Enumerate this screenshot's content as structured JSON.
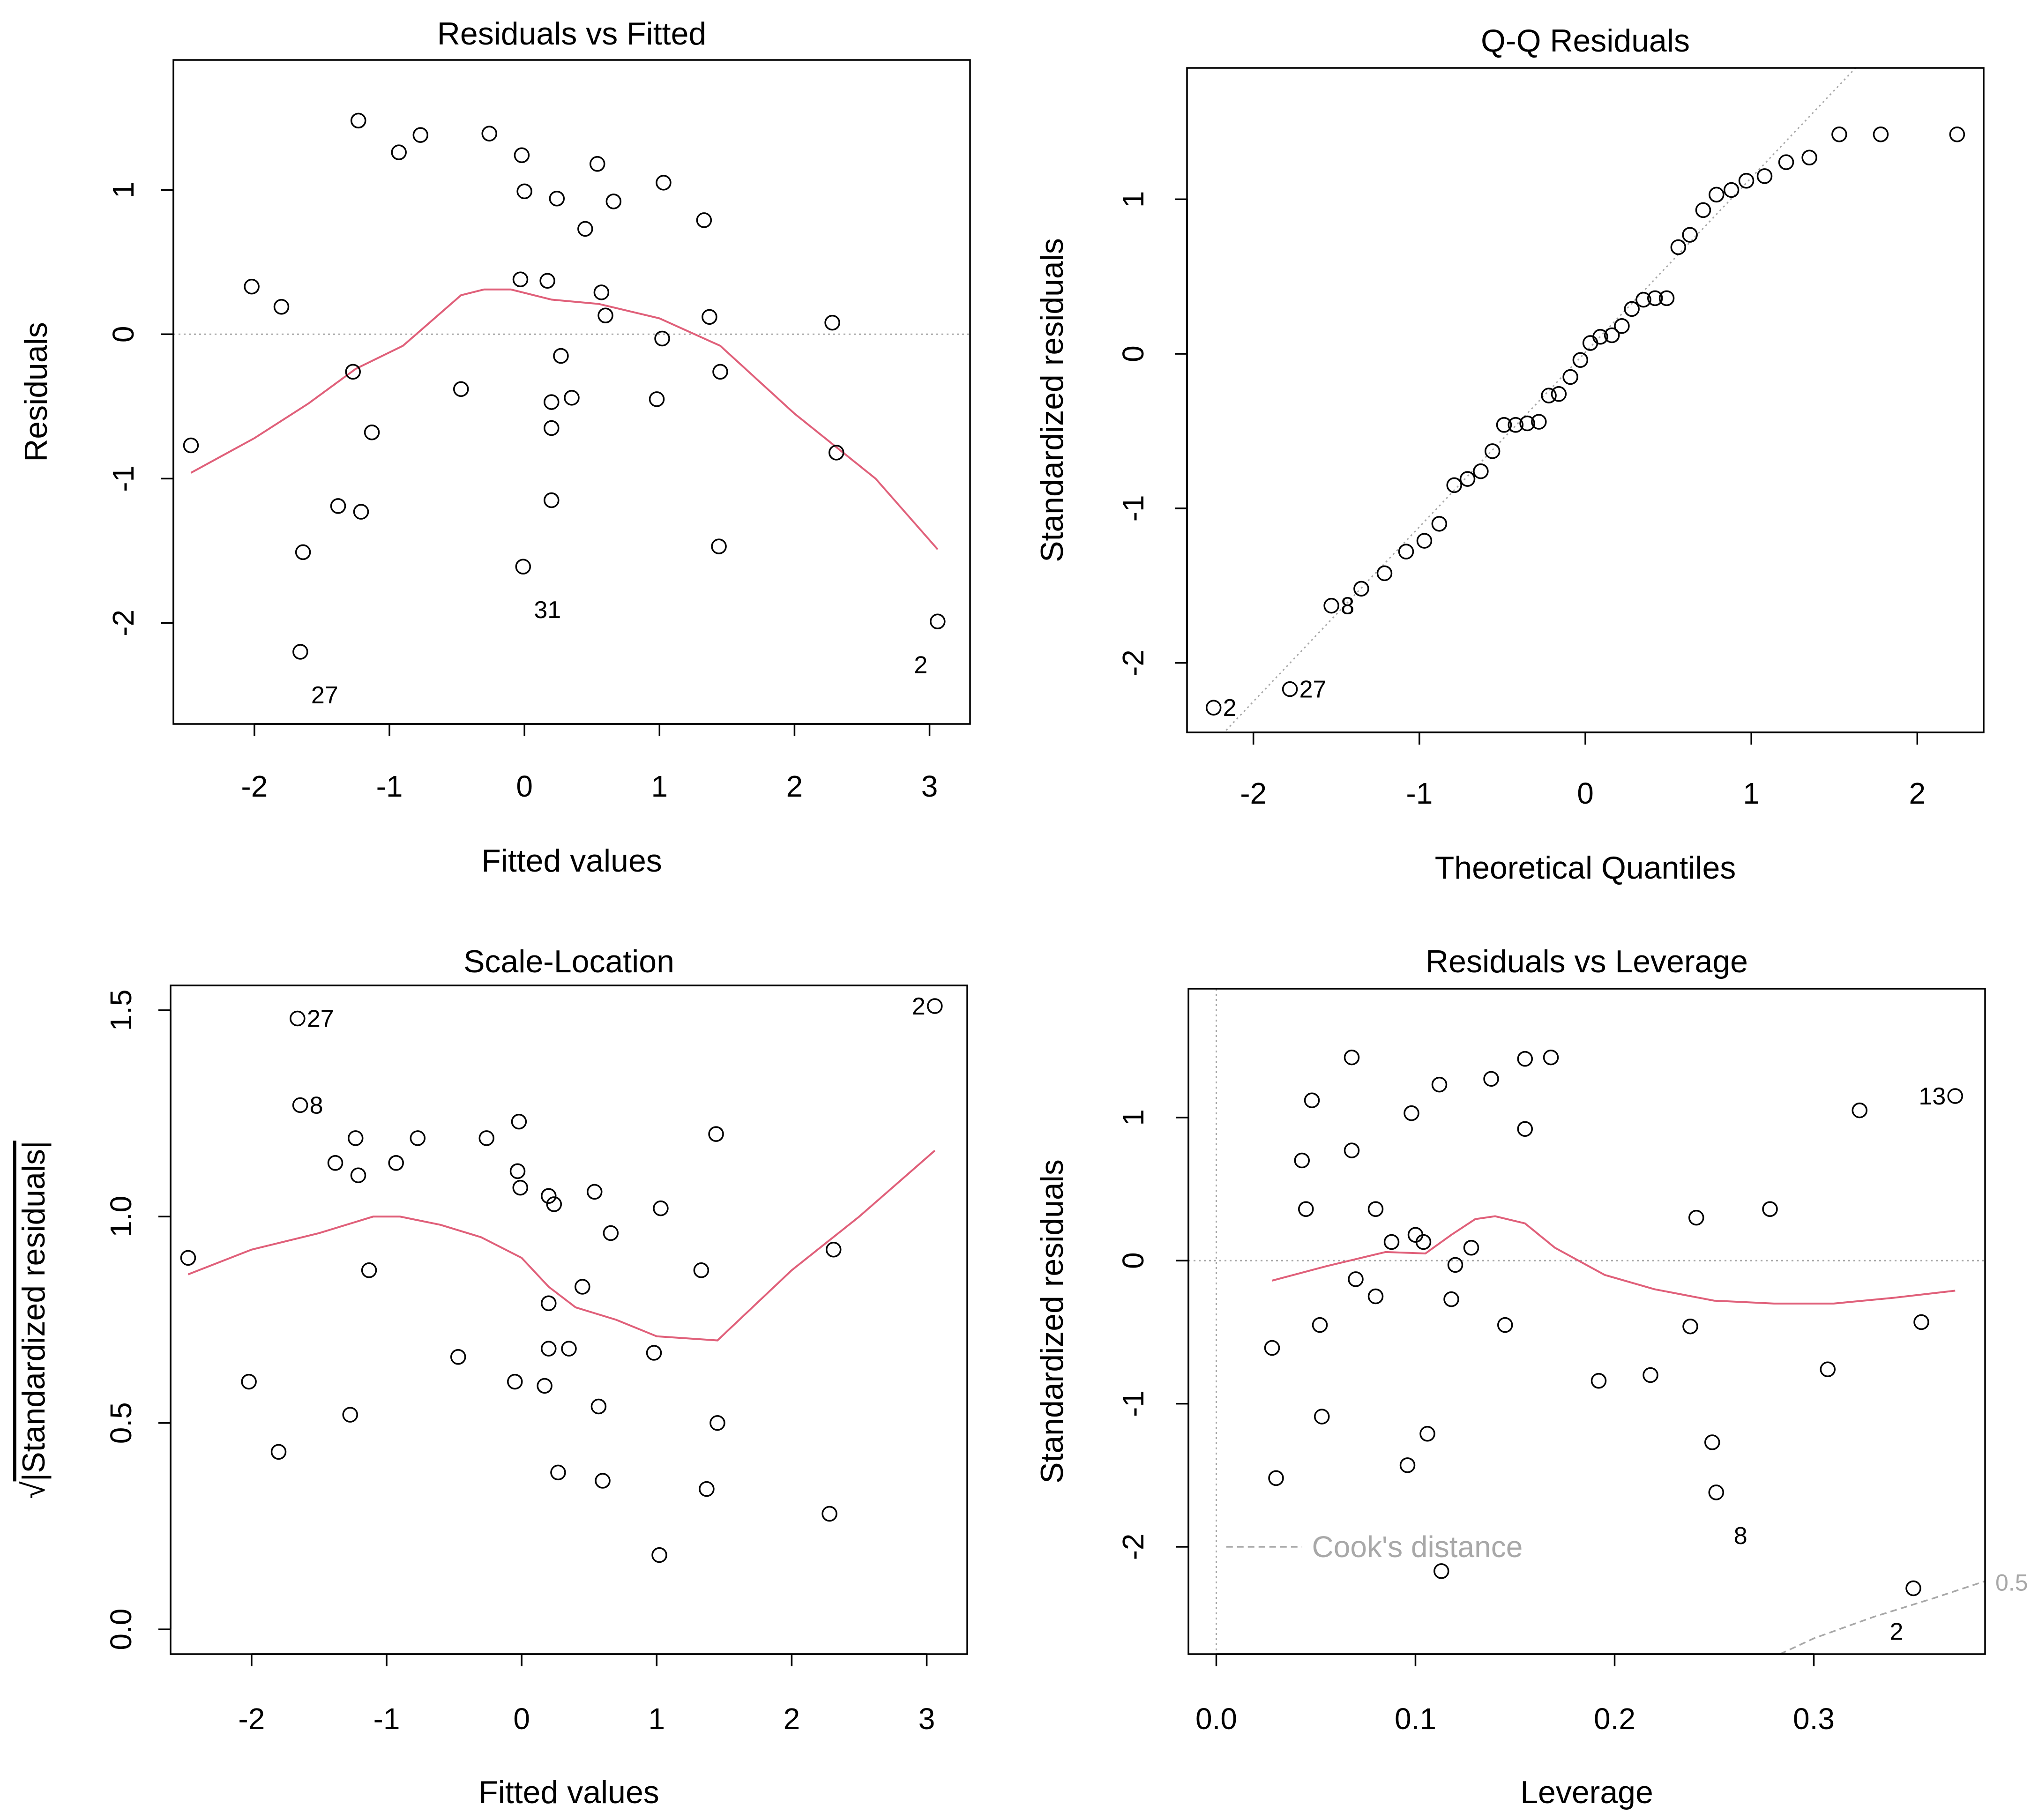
{
  "colors": {
    "points": "#000000",
    "smooth": "#e0607a",
    "reference": "#a8a8a8",
    "axis": "#000000"
  },
  "chart_data": [
    {
      "type": "scatter",
      "title": "Residuals vs Fitted",
      "xlabel": "Fitted values",
      "ylabel": "Residuals",
      "xlim": [
        -2.6,
        3.3
      ],
      "ylim": [
        -2.7,
        1.9
      ],
      "xticks": [
        -2,
        -1,
        0,
        1,
        2,
        3
      ],
      "yticks": [
        -2,
        -1,
        0,
        1
      ],
      "reference_line": {
        "orientation": "horizontal",
        "value": 0,
        "style": "dotted"
      },
      "points": [
        [
          -1.23,
          1.48
        ],
        [
          -0.93,
          1.26
        ],
        [
          -0.77,
          1.38
        ],
        [
          -0.26,
          1.39
        ],
        [
          -0.02,
          1.24
        ],
        [
          0.54,
          1.18
        ],
        [
          0.0,
          0.99
        ],
        [
          0.24,
          0.94
        ],
        [
          0.66,
          0.92
        ],
        [
          1.03,
          1.05
        ],
        [
          0.45,
          0.73
        ],
        [
          1.33,
          0.79
        ],
        [
          -2.02,
          0.33
        ],
        [
          -1.8,
          0.19
        ],
        [
          -0.03,
          0.38
        ],
        [
          0.17,
          0.37
        ],
        [
          0.57,
          0.29
        ],
        [
          0.6,
          0.13
        ],
        [
          1.37,
          0.12
        ],
        [
          2.28,
          0.08
        ],
        [
          1.02,
          -0.03
        ],
        [
          0.27,
          -0.15
        ],
        [
          1.45,
          -0.26
        ],
        [
          -1.27,
          -0.26
        ],
        [
          -0.47,
          -0.38
        ],
        [
          0.35,
          -0.44
        ],
        [
          0.2,
          -0.47
        ],
        [
          0.98,
          -0.45
        ],
        [
          0.2,
          -0.65
        ],
        [
          -1.13,
          -0.68
        ],
        [
          -2.47,
          -0.77
        ],
        [
          2.31,
          -0.82
        ],
        [
          -1.38,
          -1.19
        ],
        [
          -1.21,
          -1.23
        ],
        [
          0.2,
          -1.15
        ],
        [
          -1.64,
          -1.51
        ],
        [
          1.44,
          -1.47
        ],
        [
          -0.01,
          -1.61
        ],
        [
          -1.66,
          -2.2
        ],
        [
          3.06,
          -1.99
        ]
      ],
      "point_labels": [
        {
          "point": [
            -1.66,
            -2.2
          ],
          "label": "27",
          "pos": "below"
        },
        {
          "point": [
            -0.01,
            -1.61
          ],
          "label": "31",
          "pos": "below"
        },
        {
          "point": [
            3.06,
            -1.99
          ],
          "label": "2",
          "pos": "below-left"
        }
      ],
      "smooth": [
        [
          -2.47,
          -0.96
        ],
        [
          -2.0,
          -0.72
        ],
        [
          -1.6,
          -0.48
        ],
        [
          -1.25,
          -0.24
        ],
        [
          -0.9,
          -0.08
        ],
        [
          -0.47,
          0.27
        ],
        [
          -0.3,
          0.31
        ],
        [
          -0.1,
          0.31
        ],
        [
          0.2,
          0.24
        ],
        [
          0.55,
          0.21
        ],
        [
          1.0,
          0.11
        ],
        [
          1.45,
          -0.08
        ],
        [
          2.0,
          -0.55
        ],
        [
          2.6,
          -1.0
        ],
        [
          3.06,
          -1.49
        ]
      ]
    },
    {
      "type": "scatter",
      "title": "Q-Q Residuals",
      "xlabel": "Theoretical Quantiles",
      "ylabel": "Standardized residuals",
      "xlim": [
        -2.4,
        2.4
      ],
      "ylim": [
        -2.45,
        1.85
      ],
      "xticks": [
        -2,
        -1,
        0,
        1,
        2
      ],
      "yticks": [
        -2,
        -1,
        0,
        1
      ],
      "reference_line": {
        "orientation": "diagonal",
        "intercept": 0.01,
        "slope": 1.13,
        "style": "dotted"
      },
      "points": [
        [
          -2.24,
          -2.29
        ],
        [
          -1.78,
          -2.17
        ],
        [
          -1.53,
          -1.63
        ],
        [
          -1.35,
          -1.52
        ],
        [
          -1.21,
          -1.42
        ],
        [
          -1.08,
          -1.28
        ],
        [
          -0.97,
          -1.21
        ],
        [
          -0.88,
          -1.1
        ],
        [
          -0.79,
          -0.85
        ],
        [
          -0.71,
          -0.81
        ],
        [
          -0.63,
          -0.76
        ],
        [
          -0.56,
          -0.63
        ],
        [
          -0.49,
          -0.46
        ],
        [
          -0.42,
          -0.46
        ],
        [
          -0.35,
          -0.45
        ],
        [
          -0.28,
          -0.44
        ],
        [
          -0.22,
          -0.27
        ],
        [
          -0.16,
          -0.26
        ],
        [
          -0.09,
          -0.15
        ],
        [
          -0.03,
          -0.04
        ],
        [
          0.03,
          0.07
        ],
        [
          0.09,
          0.11
        ],
        [
          0.16,
          0.12
        ],
        [
          0.22,
          0.18
        ],
        [
          0.28,
          0.29
        ],
        [
          0.35,
          0.35
        ],
        [
          0.42,
          0.36
        ],
        [
          0.49,
          0.36
        ],
        [
          0.56,
          0.69
        ],
        [
          0.63,
          0.77
        ],
        [
          0.71,
          0.93
        ],
        [
          0.79,
          1.03
        ],
        [
          0.88,
          1.06
        ],
        [
          0.97,
          1.12
        ],
        [
          1.08,
          1.15
        ],
        [
          1.21,
          1.24
        ],
        [
          1.35,
          1.27
        ],
        [
          1.53,
          1.42
        ],
        [
          1.78,
          1.42
        ],
        [
          2.24,
          1.42
        ]
      ],
      "point_labels": [
        {
          "point": [
            -2.24,
            -2.29
          ],
          "label": "2",
          "pos": "right"
        },
        {
          "point": [
            -1.78,
            -2.17
          ],
          "label": "27",
          "pos": "right"
        },
        {
          "point": [
            -1.53,
            -1.63
          ],
          "label": "8",
          "pos": "right"
        }
      ]
    },
    {
      "type": "scatter",
      "title": "Scale-Location",
      "xlabel": "Fitted values",
      "ylabel": "√|Standardized residuals|",
      "ylabel_radicand": "|Standardized residuals|",
      "xlim": [
        -2.6,
        3.3
      ],
      "ylim": [
        -0.06,
        1.56
      ],
      "xticks": [
        -2,
        -1,
        0,
        1,
        2,
        3
      ],
      "yticks": [
        0.0,
        0.5,
        1.0,
        1.5
      ],
      "ytick_labels": [
        "0.0",
        "0.5",
        "1.0",
        "1.5"
      ],
      "points": [
        [
          -1.66,
          1.48
        ],
        [
          3.06,
          1.51
        ],
        [
          -1.64,
          1.27
        ],
        [
          -1.23,
          1.19
        ],
        [
          -0.77,
          1.19
        ],
        [
          -0.26,
          1.19
        ],
        [
          -0.02,
          1.23
        ],
        [
          -1.38,
          1.13
        ],
        [
          -0.93,
          1.13
        ],
        [
          -0.03,
          1.11
        ],
        [
          -1.21,
          1.1
        ],
        [
          -0.01,
          1.07
        ],
        [
          0.2,
          1.05
        ],
        [
          0.24,
          1.03
        ],
        [
          0.54,
          1.06
        ],
        [
          1.44,
          1.2
        ],
        [
          1.03,
          1.02
        ],
        [
          0.66,
          0.96
        ],
        [
          2.31,
          0.92
        ],
        [
          -2.47,
          0.9
        ],
        [
          -1.13,
          0.87
        ],
        [
          1.33,
          0.87
        ],
        [
          0.45,
          0.83
        ],
        [
          0.2,
          0.79
        ],
        [
          0.2,
          0.68
        ],
        [
          0.35,
          0.68
        ],
        [
          0.98,
          0.67
        ],
        [
          -0.47,
          0.66
        ],
        [
          -2.02,
          0.6
        ],
        [
          -0.05,
          0.6
        ],
        [
          0.17,
          0.59
        ],
        [
          0.57,
          0.54
        ],
        [
          -1.27,
          0.52
        ],
        [
          1.45,
          0.5
        ],
        [
          -1.8,
          0.43
        ],
        [
          0.27,
          0.38
        ],
        [
          0.6,
          0.36
        ],
        [
          1.37,
          0.34
        ],
        [
          2.28,
          0.28
        ],
        [
          1.02,
          0.18
        ]
      ],
      "point_labels": [
        {
          "point": [
            -1.66,
            1.48
          ],
          "label": "27",
          "pos": "right"
        },
        {
          "point": [
            -1.64,
            1.27
          ],
          "label": "8",
          "pos": "right"
        },
        {
          "point": [
            3.06,
            1.51
          ],
          "label": "2",
          "pos": "left"
        }
      ],
      "smooth": [
        [
          -2.47,
          0.86
        ],
        [
          -2.0,
          0.92
        ],
        [
          -1.5,
          0.96
        ],
        [
          -1.1,
          1.0
        ],
        [
          -0.9,
          1.0
        ],
        [
          -0.6,
          0.98
        ],
        [
          -0.3,
          0.95
        ],
        [
          0.0,
          0.9
        ],
        [
          0.2,
          0.83
        ],
        [
          0.4,
          0.78
        ],
        [
          0.7,
          0.75
        ],
        [
          1.0,
          0.71
        ],
        [
          1.45,
          0.7
        ],
        [
          2.0,
          0.87
        ],
        [
          2.5,
          1.0
        ],
        [
          3.06,
          1.16
        ]
      ]
    },
    {
      "type": "scatter",
      "title": "Residuals vs Leverage",
      "xlabel": "Leverage",
      "ylabel": "Standardized residuals",
      "xlim": [
        -0.014,
        0.386
      ],
      "ylim": [
        -2.75,
        1.9
      ],
      "xticks": [
        0.0,
        0.1,
        0.2,
        0.3
      ],
      "xtick_labels": [
        "0.0",
        "0.1",
        "0.2",
        "0.3"
      ],
      "yticks": [
        -2,
        -1,
        0,
        1
      ],
      "reference_line": {
        "orientation": "horizontal",
        "value": 0,
        "style": "dotted"
      },
      "vertical_reference": {
        "value": 0,
        "style": "dotted"
      },
      "points": [
        [
          0.068,
          1.42
        ],
        [
          0.155,
          1.41
        ],
        [
          0.168,
          1.42
        ],
        [
          0.138,
          1.27
        ],
        [
          0.112,
          1.23
        ],
        [
          0.048,
          1.12
        ],
        [
          0.098,
          1.03
        ],
        [
          0.155,
          0.92
        ],
        [
          0.323,
          1.05
        ],
        [
          0.371,
          1.15
        ],
        [
          0.068,
          0.77
        ],
        [
          0.043,
          0.7
        ],
        [
          0.045,
          0.36
        ],
        [
          0.08,
          0.36
        ],
        [
          0.278,
          0.36
        ],
        [
          0.241,
          0.3
        ],
        [
          0.1,
          0.18
        ],
        [
          0.088,
          0.13
        ],
        [
          0.104,
          0.13
        ],
        [
          0.128,
          0.09
        ],
        [
          0.12,
          -0.03
        ],
        [
          0.07,
          -0.13
        ],
        [
          0.08,
          -0.25
        ],
        [
          0.118,
          -0.27
        ],
        [
          0.145,
          -0.45
        ],
        [
          0.052,
          -0.45
        ],
        [
          0.238,
          -0.46
        ],
        [
          0.354,
          -0.43
        ],
        [
          0.028,
          -0.61
        ],
        [
          0.307,
          -0.76
        ],
        [
          0.218,
          -0.8
        ],
        [
          0.192,
          -0.84
        ],
        [
          0.053,
          -1.09
        ],
        [
          0.106,
          -1.21
        ],
        [
          0.249,
          -1.27
        ],
        [
          0.096,
          -1.43
        ],
        [
          0.03,
          -1.52
        ],
        [
          0.251,
          -1.62
        ],
        [
          0.113,
          -2.17
        ],
        [
          0.35,
          -2.29
        ]
      ],
      "point_labels": [
        {
          "point": [
            0.371,
            1.15
          ],
          "label": "13",
          "pos": "left"
        },
        {
          "point": [
            0.251,
            -1.62
          ],
          "label": "8",
          "pos": "below"
        },
        {
          "point": [
            0.35,
            -2.29
          ],
          "label": "2",
          "pos": "below-left"
        }
      ],
      "smooth": [
        [
          0.028,
          -0.14
        ],
        [
          0.055,
          -0.04
        ],
        [
          0.085,
          0.06
        ],
        [
          0.105,
          0.05
        ],
        [
          0.118,
          0.18
        ],
        [
          0.13,
          0.29
        ],
        [
          0.14,
          0.31
        ],
        [
          0.155,
          0.26
        ],
        [
          0.17,
          0.09
        ],
        [
          0.195,
          -0.1
        ],
        [
          0.22,
          -0.2
        ],
        [
          0.25,
          -0.28
        ],
        [
          0.28,
          -0.3
        ],
        [
          0.31,
          -0.3
        ],
        [
          0.34,
          -0.26
        ],
        [
          0.371,
          -0.21
        ]
      ],
      "cooks_distance": {
        "legend": "Cook's distance",
        "level_label": "0.5",
        "curve": [
          [
            0.283,
            -2.75
          ],
          [
            0.3,
            -2.64
          ],
          [
            0.33,
            -2.49
          ],
          [
            0.36,
            -2.36
          ],
          [
            0.386,
            -2.24
          ]
        ]
      }
    }
  ]
}
